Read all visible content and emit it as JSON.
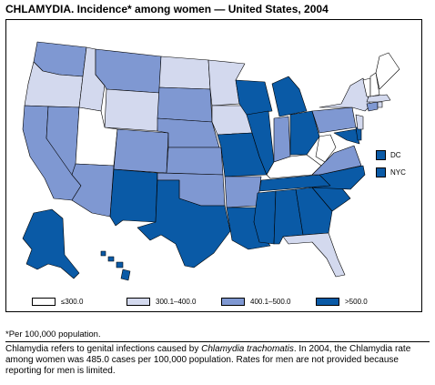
{
  "title": "CHLAMYDIA. Incidence* among women — United States, 2004",
  "legend": [
    {
      "label": "≤300.0",
      "color": "#ffffff"
    },
    {
      "label": "300.1–400.0",
      "color": "#d3d9ee"
    },
    {
      "label": "400.1–500.0",
      "color": "#7f98d2"
    },
    {
      "label": ">500.0",
      "color": "#0a5aa6"
    }
  ],
  "insets": [
    {
      "label": "DC",
      "color": "#0a5aa6"
    },
    {
      "label": "NYC",
      "color": "#0a5aa6"
    }
  ],
  "footnote": "*Per 100,000 population.",
  "description": {
    "before": "Chlamydia refers to genital infections caused by ",
    "italic": "Chlamydia trachomatis",
    "after": ".  In 2004, the Chlamydia rate among women was 485.0 cases per 100,000 population. Rates for men are not provided because reporting for men is limited."
  },
  "colors": {
    "le300": "#ffffff",
    "c300_400": "#d3d9ee",
    "c400_500": "#7f98d2",
    "gt500": "#0a5aa6",
    "border": "#000000"
  }
}
